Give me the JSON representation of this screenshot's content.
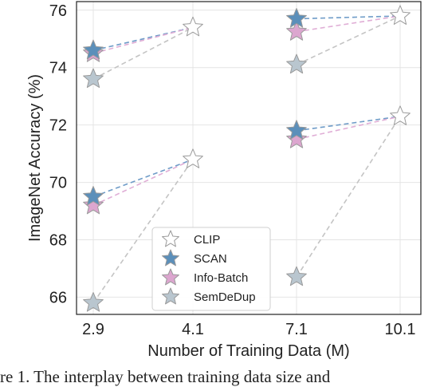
{
  "chart_data": {
    "type": "scatter",
    "xlabel": "Number of Training Data (M)",
    "ylabel": "ImageNet Accuracy (%)",
    "categories": [
      "2.9",
      "4.1",
      "7.1",
      "10.1"
    ],
    "ylim": [
      65.4,
      76.3
    ],
    "yticks": [
      66,
      68,
      70,
      72,
      74,
      76
    ],
    "grid": true,
    "legend_position": "lower-left",
    "marker": "star",
    "series": [
      {
        "name": "CLIP",
        "color": "#ffffff",
        "edge": "#9a9a9a",
        "line_color": null,
        "points": [
          [
            "4.1",
            75.4
          ],
          [
            "10.1",
            75.8
          ],
          [
            "4.1",
            70.8
          ],
          [
            "10.1",
            72.3
          ]
        ]
      },
      {
        "name": "SCAN",
        "color": "#5b8fba",
        "edge": "#9a9a9a",
        "line_color": "#6f9cc8",
        "points": [
          [
            "2.9",
            74.6
          ],
          [
            "7.1",
            75.7
          ],
          [
            "2.9",
            69.5
          ],
          [
            "7.1",
            71.8
          ]
        ]
      },
      {
        "name": "Info-Batch",
        "color": "#dca6cf",
        "edge": "#9a9a9a",
        "line_color": "#e0aed6",
        "points": [
          [
            "2.9",
            74.5
          ],
          [
            "7.1",
            75.25
          ],
          [
            "2.9",
            69.2
          ],
          [
            "7.1",
            71.5
          ]
        ]
      },
      {
        "name": "SemDeDup",
        "color": "#b9c6cf",
        "edge": "#9a9a9a",
        "line_color": "#c4c4c4",
        "points": [
          [
            "2.9",
            73.6
          ],
          [
            "7.1",
            74.1
          ],
          [
            "2.9",
            65.8
          ],
          [
            "7.1",
            66.7
          ]
        ]
      }
    ],
    "connectors": [
      {
        "series": "SCAN",
        "from": [
          "2.9",
          74.6
        ],
        "to": [
          "4.1",
          75.4
        ]
      },
      {
        "series": "SCAN",
        "from": [
          "7.1",
          75.7
        ],
        "to": [
          "10.1",
          75.8
        ]
      },
      {
        "series": "SCAN",
        "from": [
          "2.9",
          69.5
        ],
        "to": [
          "4.1",
          70.8
        ]
      },
      {
        "series": "SCAN",
        "from": [
          "7.1",
          71.8
        ],
        "to": [
          "10.1",
          72.3
        ]
      },
      {
        "series": "Info-Batch",
        "from": [
          "2.9",
          74.5
        ],
        "to": [
          "4.1",
          75.4
        ]
      },
      {
        "series": "Info-Batch",
        "from": [
          "7.1",
          75.25
        ],
        "to": [
          "10.1",
          75.8
        ]
      },
      {
        "series": "Info-Batch",
        "from": [
          "2.9",
          69.2
        ],
        "to": [
          "4.1",
          70.8
        ]
      },
      {
        "series": "Info-Batch",
        "from": [
          "7.1",
          71.5
        ],
        "to": [
          "10.1",
          72.3
        ]
      },
      {
        "series": "SemDeDup",
        "from": [
          "2.9",
          73.6
        ],
        "to": [
          "4.1",
          75.4
        ]
      },
      {
        "series": "SemDeDup",
        "from": [
          "7.1",
          74.1
        ],
        "to": [
          "10.1",
          75.8
        ]
      },
      {
        "series": "SemDeDup",
        "from": [
          "2.9",
          65.8
        ],
        "to": [
          "4.1",
          70.8
        ]
      },
      {
        "series": "SemDeDup",
        "from": [
          "7.1",
          66.7
        ],
        "to": [
          "10.1",
          72.3
        ]
      }
    ]
  },
  "caption_fragment": "re 1.  The interplay between training data size and"
}
